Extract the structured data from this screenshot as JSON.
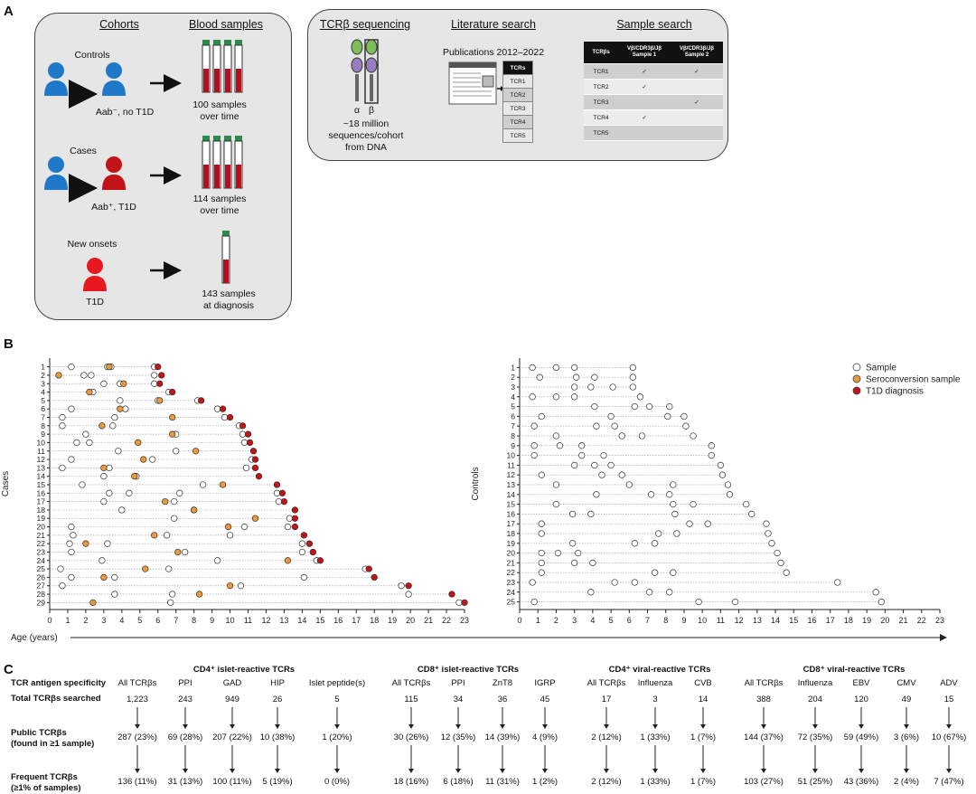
{
  "panels": {
    "a": "A",
    "b": "B",
    "c": "C"
  },
  "panel_a": {
    "cohorts_header": "Cohorts",
    "blood_header": "Blood samples",
    "groups": [
      {
        "name": "Controls",
        "person_label": "Aab⁻, no T1D",
        "samples": "100 samples",
        "samples2": "over time",
        "person_color": "#1f78c8"
      },
      {
        "name": "Cases",
        "person_label": "Aab⁺, T1D",
        "samples": "114 samples",
        "samples2": "over time",
        "person_color": "#c0141a"
      },
      {
        "name": "New onsets",
        "person_label": "T1D",
        "samples": "143 samples",
        "samples2": "at diagnosis",
        "person_color": "#e8191e"
      }
    ],
    "tcr_header": "TCRβ sequencing",
    "alpha": "α",
    "beta": "β",
    "tcr_text": [
      "~18 million",
      "sequences/cohort",
      "from DNA"
    ],
    "lit_header": "Literature search",
    "pub_text": "Publications 2012–2022",
    "mini_table_header": "TCRs",
    "mini_table_rows": [
      "TCR1",
      "TCR2",
      "TCR3",
      "TCR4",
      "TCR5"
    ],
    "sample_header": "Sample search",
    "ss_cols": [
      "TCRβs",
      "Vβ/CDR3β/Jβ Sample 1",
      "Vβ/CDR3β/Jβ Sample 2"
    ],
    "ss_rows": [
      [
        "TCR1",
        "✓",
        "✓"
      ],
      [
        "TCR2",
        "✓",
        ""
      ],
      [
        "TCR3",
        "",
        "✓"
      ],
      [
        "TCR4",
        "✓",
        ""
      ],
      [
        "TCR5",
        "",
        ""
      ]
    ]
  },
  "chart_data": [
    {
      "type": "scatter",
      "title": "",
      "ylabel": "Cases",
      "xlabel": "Age (years)",
      "xlim": [
        0,
        23
      ],
      "legend": [
        "Sample",
        "Seroconversion sample",
        "T1D diagnosis"
      ],
      "subjects": [
        {
          "id": 1,
          "s": [
            1.2,
            3.2,
            3.4,
            5.8
          ],
          "sc": [
            3.3
          ],
          "d": 6.0
        },
        {
          "id": 2,
          "s": [
            1.9,
            2.3,
            5.8
          ],
          "sc": [
            0.5
          ],
          "d": 6.2
        },
        {
          "id": 3,
          "s": [
            3.0,
            3.9,
            5.8
          ],
          "sc": [
            4.1
          ],
          "d": 6.1
        },
        {
          "id": 4,
          "s": [
            2.4,
            6.6
          ],
          "sc": [
            2.2
          ],
          "d": 6.8
        },
        {
          "id": 5,
          "s": [
            3.9,
            6.0,
            8.2
          ],
          "sc": [
            6.1
          ],
          "d": 8.4
        },
        {
          "id": 6,
          "s": [
            1.2,
            4.2,
            9.3
          ],
          "sc": [
            3.9
          ],
          "d": 9.6
        },
        {
          "id": 7,
          "s": [
            0.7,
            3.6,
            9.7
          ],
          "sc": [
            6.8
          ],
          "d": 10.0
        },
        {
          "id": 8,
          "s": [
            0.7,
            3.5,
            10.5
          ],
          "sc": [
            2.9
          ],
          "d": 10.7
        },
        {
          "id": 9,
          "s": [
            2.0,
            7.0,
            10.7
          ],
          "sc": [
            6.8
          ],
          "d": 11.0
        },
        {
          "id": 10,
          "s": [
            1.5,
            2.2,
            10.8
          ],
          "sc": [
            4.9
          ],
          "d": 11.1
        },
        {
          "id": 11,
          "s": [
            3.8,
            7.0
          ],
          "sc": [
            8.1
          ],
          "d": 11.3
        },
        {
          "id": 12,
          "s": [
            1.2,
            5.7,
            11.2
          ],
          "sc": [
            5.2
          ],
          "d": 11.4
        },
        {
          "id": 13,
          "s": [
            0.7,
            3.3,
            10.9
          ],
          "sc": [
            3.0
          ],
          "d": 11.4
        },
        {
          "id": 14,
          "s": [
            3.0,
            4.8
          ],
          "sc": [
            4.7
          ],
          "d": 11.6
        },
        {
          "id": 15,
          "s": [
            1.8,
            8.5
          ],
          "sc": [
            9.6
          ],
          "d": 12.6
        },
        {
          "id": 16,
          "s": [
            3.3,
            4.4,
            7.2,
            12.6
          ],
          "sc": [],
          "d": 12.9
        },
        {
          "id": 17,
          "s": [
            3.0,
            6.9,
            12.7
          ],
          "sc": [
            6.4
          ],
          "d": 13.0
        },
        {
          "id": 18,
          "s": [
            4.0,
            8.0
          ],
          "sc": [
            8.0
          ],
          "d": 13.6
        },
        {
          "id": 19,
          "s": [
            6.9,
            13.3
          ],
          "sc": [
            11.4
          ],
          "d": 13.6
        },
        {
          "id": 20,
          "s": [
            1.2,
            10.8,
            13.2
          ],
          "sc": [
            9.9
          ],
          "d": 13.6
        },
        {
          "id": 21,
          "s": [
            1.3,
            6.5,
            10.0
          ],
          "sc": [
            5.8
          ],
          "d": 14.1
        },
        {
          "id": 22,
          "s": [
            1.1,
            3.2,
            14.0
          ],
          "sc": [
            2.0
          ],
          "d": 14.4
        },
        {
          "id": 23,
          "s": [
            1.2,
            7.5,
            14.0
          ],
          "sc": [
            7.1
          ],
          "d": 14.6
        },
        {
          "id": 24,
          "s": [
            2.9,
            9.3,
            14.8
          ],
          "sc": [
            13.2
          ],
          "d": 15.0
        },
        {
          "id": 25,
          "s": [
            0.6,
            6.6,
            17.5
          ],
          "sc": [
            5.3
          ],
          "d": 17.7
        },
        {
          "id": 26,
          "s": [
            1.2,
            3.6,
            14.1
          ],
          "sc": [
            3.0
          ],
          "d": 18.0
        },
        {
          "id": 27,
          "s": [
            0.7,
            10.6,
            19.5
          ],
          "sc": [
            10.0
          ],
          "d": 19.9
        },
        {
          "id": 28,
          "s": [
            3.6,
            6.8,
            19.9
          ],
          "sc": [
            8.3
          ],
          "d": 22.3
        },
        {
          "id": 29,
          "s": [
            6.7,
            22.7
          ],
          "sc": [
            2.4
          ],
          "d": 23.0
        }
      ]
    },
    {
      "type": "scatter",
      "title": "",
      "ylabel": "Controls",
      "xlabel": "",
      "xlim": [
        0,
        23
      ],
      "subjects": [
        {
          "id": 1,
          "s": [
            0.7,
            2.0,
            3.0,
            6.2
          ]
        },
        {
          "id": 2,
          "s": [
            1.1,
            3.1,
            4.1,
            6.2
          ]
        },
        {
          "id": 3,
          "s": [
            3.0,
            3.9,
            5.1,
            6.2
          ]
        },
        {
          "id": 4,
          "s": [
            0.7,
            2.0,
            3.0,
            6.6
          ]
        },
        {
          "id": 5,
          "s": [
            4.1,
            7.1,
            8.2,
            6.3
          ]
        },
        {
          "id": 6,
          "s": [
            1.2,
            5.0,
            8.1,
            9.0
          ]
        },
        {
          "id": 7,
          "s": [
            0.8,
            4.2,
            5.2,
            9.1
          ]
        },
        {
          "id": 8,
          "s": [
            2.0,
            5.6,
            6.7,
            9.5
          ]
        },
        {
          "id": 9,
          "s": [
            0.8,
            2.2,
            3.4,
            10.5
          ]
        },
        {
          "id": 10,
          "s": [
            0.8,
            3.4,
            4.6,
            10.5
          ]
        },
        {
          "id": 11,
          "s": [
            3.0,
            4.1,
            5.0,
            11.0
          ]
        },
        {
          "id": 12,
          "s": [
            1.2,
            4.5,
            5.6,
            11.1
          ]
        },
        {
          "id": 13,
          "s": [
            2.0,
            6.0,
            8.4,
            11.4
          ]
        },
        {
          "id": 14,
          "s": [
            4.2,
            7.2,
            8.2,
            11.5
          ]
        },
        {
          "id": 15,
          "s": [
            2.0,
            8.4,
            9.5,
            12.4
          ]
        },
        {
          "id": 16,
          "s": [
            2.9,
            3.9,
            8.5,
            12.7
          ]
        },
        {
          "id": 17,
          "s": [
            1.2,
            9.3,
            10.3,
            13.5
          ]
        },
        {
          "id": 18,
          "s": [
            1.2,
            7.6,
            8.6,
            13.6
          ]
        },
        {
          "id": 19,
          "s": [
            2.9,
            6.3,
            7.4,
            13.8
          ]
        },
        {
          "id": 20,
          "s": [
            1.2,
            2.1,
            3.2,
            14.1
          ]
        },
        {
          "id": 21,
          "s": [
            1.2,
            3.0,
            4.0,
            14.3
          ]
        },
        {
          "id": 22,
          "s": [
            1.2,
            7.4,
            8.4,
            14.6
          ]
        },
        {
          "id": 23,
          "s": [
            0.7,
            5.2,
            6.3,
            17.4
          ]
        },
        {
          "id": 24,
          "s": [
            3.9,
            7.1,
            8.2,
            19.5
          ]
        },
        {
          "id": 25,
          "s": [
            0.8,
            9.8,
            11.8,
            19.8
          ]
        }
      ]
    }
  ],
  "panel_b": {
    "legend": [
      "Sample",
      "Seroconversion sample",
      "T1D diagnosis"
    ],
    "colors": {
      "sample": "#ffffff",
      "sero": "#e89a3c",
      "diag": "#c0141a"
    }
  },
  "panel_c": {
    "groups": [
      "CD4⁺ islet-reactive TCRs",
      "CD8⁺ islet-reactive TCRs",
      "CD4⁺ viral-reactive TCRs",
      "CD8⁺ viral-reactive TCRs"
    ],
    "row_labels": {
      "specificity": "TCR antigen specificity",
      "total": "Total TCRβs searched",
      "public": "Public TCRβs",
      "public2": "(found in ≥1 sample)",
      "frequent": "Frequent TCRβs",
      "frequent2": "(≥1% of samples)"
    },
    "columns": [
      {
        "spec": "All TCRβs",
        "total": "1,223",
        "public": "287 (23%)",
        "frequent": "136 (11%)"
      },
      {
        "spec": "PPI",
        "total": "243",
        "public": "69 (28%)",
        "frequent": "31 (13%)"
      },
      {
        "spec": "GAD",
        "total": "949",
        "public": "207 (22%)",
        "frequent": "100 (11%)"
      },
      {
        "spec": "HIP",
        "total": "26",
        "public": "10 (38%)",
        "frequent": "5 (19%)"
      },
      {
        "spec": "Islet peptide(s)",
        "total": "5",
        "public": "1 (20%)",
        "frequent": "0 (0%)"
      },
      {
        "spec": "All TCRβs",
        "total": "115",
        "public": "30 (26%)",
        "frequent": "18 (16%)"
      },
      {
        "spec": "PPI",
        "total": "34",
        "public": "12 (35%)",
        "frequent": "6 (18%)"
      },
      {
        "spec": "ZnT8",
        "total": "36",
        "public": "14 (39%)",
        "frequent": "11 (31%)"
      },
      {
        "spec": "IGRP",
        "total": "45",
        "public": "4 (9%)",
        "frequent": "1 (2%)"
      },
      {
        "spec": "All TCRβs",
        "total": "17",
        "public": "2 (12%)",
        "frequent": "2 (12%)"
      },
      {
        "spec": "Influenza",
        "total": "3",
        "public": "1 (33%)",
        "frequent": "1 (33%)"
      },
      {
        "spec": "CVB",
        "total": "14",
        "public": "1 (7%)",
        "frequent": "1 (7%)"
      },
      {
        "spec": "All TCRβs",
        "total": "388",
        "public": "144 (37%)",
        "frequent": "103 (27%)"
      },
      {
        "spec": "Influenza",
        "total": "204",
        "public": "72 (35%)",
        "frequent": "51 (25%)"
      },
      {
        "spec": "EBV",
        "total": "120",
        "public": "59 (49%)",
        "frequent": "43 (36%)"
      },
      {
        "spec": "CMV",
        "total": "49",
        "public": "3 (6%)",
        "frequent": "2 (4%)"
      },
      {
        "spec": "ADV",
        "total": "15",
        "public": "10 (67%)",
        "frequent": "7 (47%)"
      }
    ]
  }
}
